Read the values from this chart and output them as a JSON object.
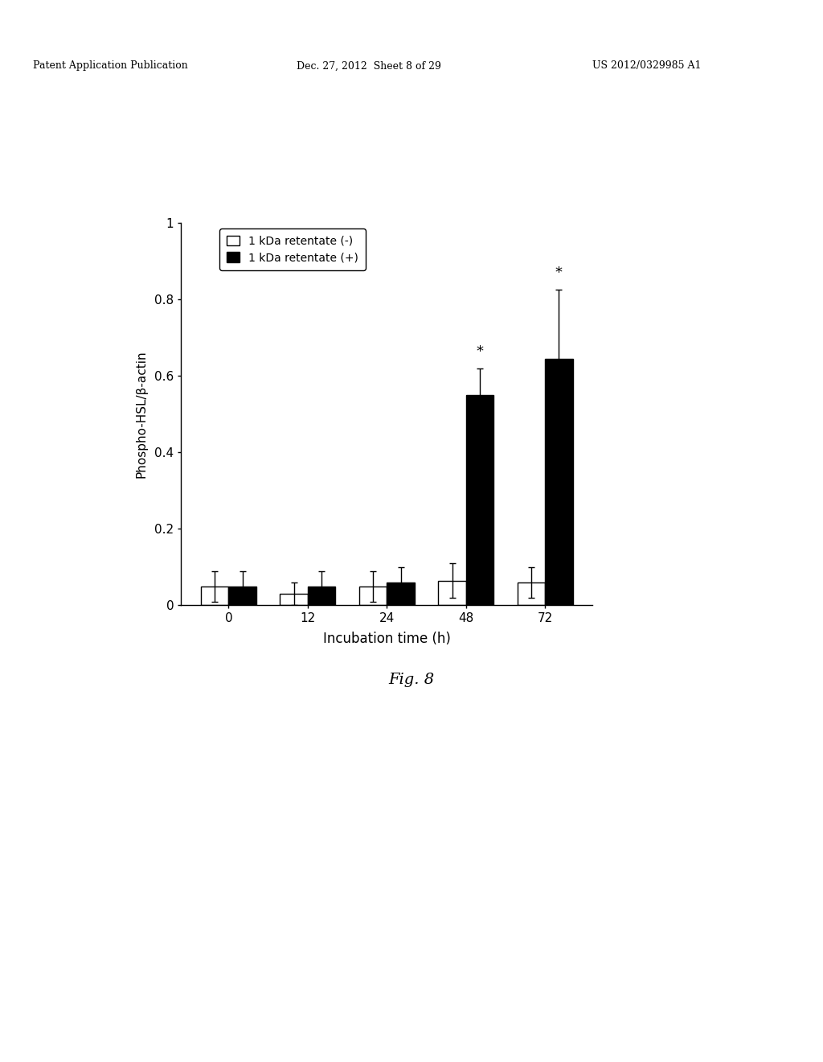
{
  "categories": [
    0,
    12,
    24,
    48,
    72
  ],
  "white_bars": [
    0.05,
    0.03,
    0.05,
    0.065,
    0.06
  ],
  "black_bars": [
    0.05,
    0.05,
    0.06,
    0.55,
    0.645
  ],
  "white_errors": [
    0.04,
    0.03,
    0.04,
    0.045,
    0.04
  ],
  "black_errors": [
    0.04,
    0.04,
    0.04,
    0.07,
    0.18
  ],
  "xlabel": "Incubation time (h)",
  "ylabel": "Phospho-HSL/β-actin",
  "ylim": [
    0,
    1.0
  ],
  "yticks": [
    0,
    0.2,
    0.4,
    0.6,
    0.8,
    1
  ],
  "legend_white": "1 kDa retentate (-)",
  "legend_black": "1 kDa retentate (+)",
  "fig_caption": "Fig. 8",
  "bar_width": 0.35,
  "background_color": "#ffffff"
}
